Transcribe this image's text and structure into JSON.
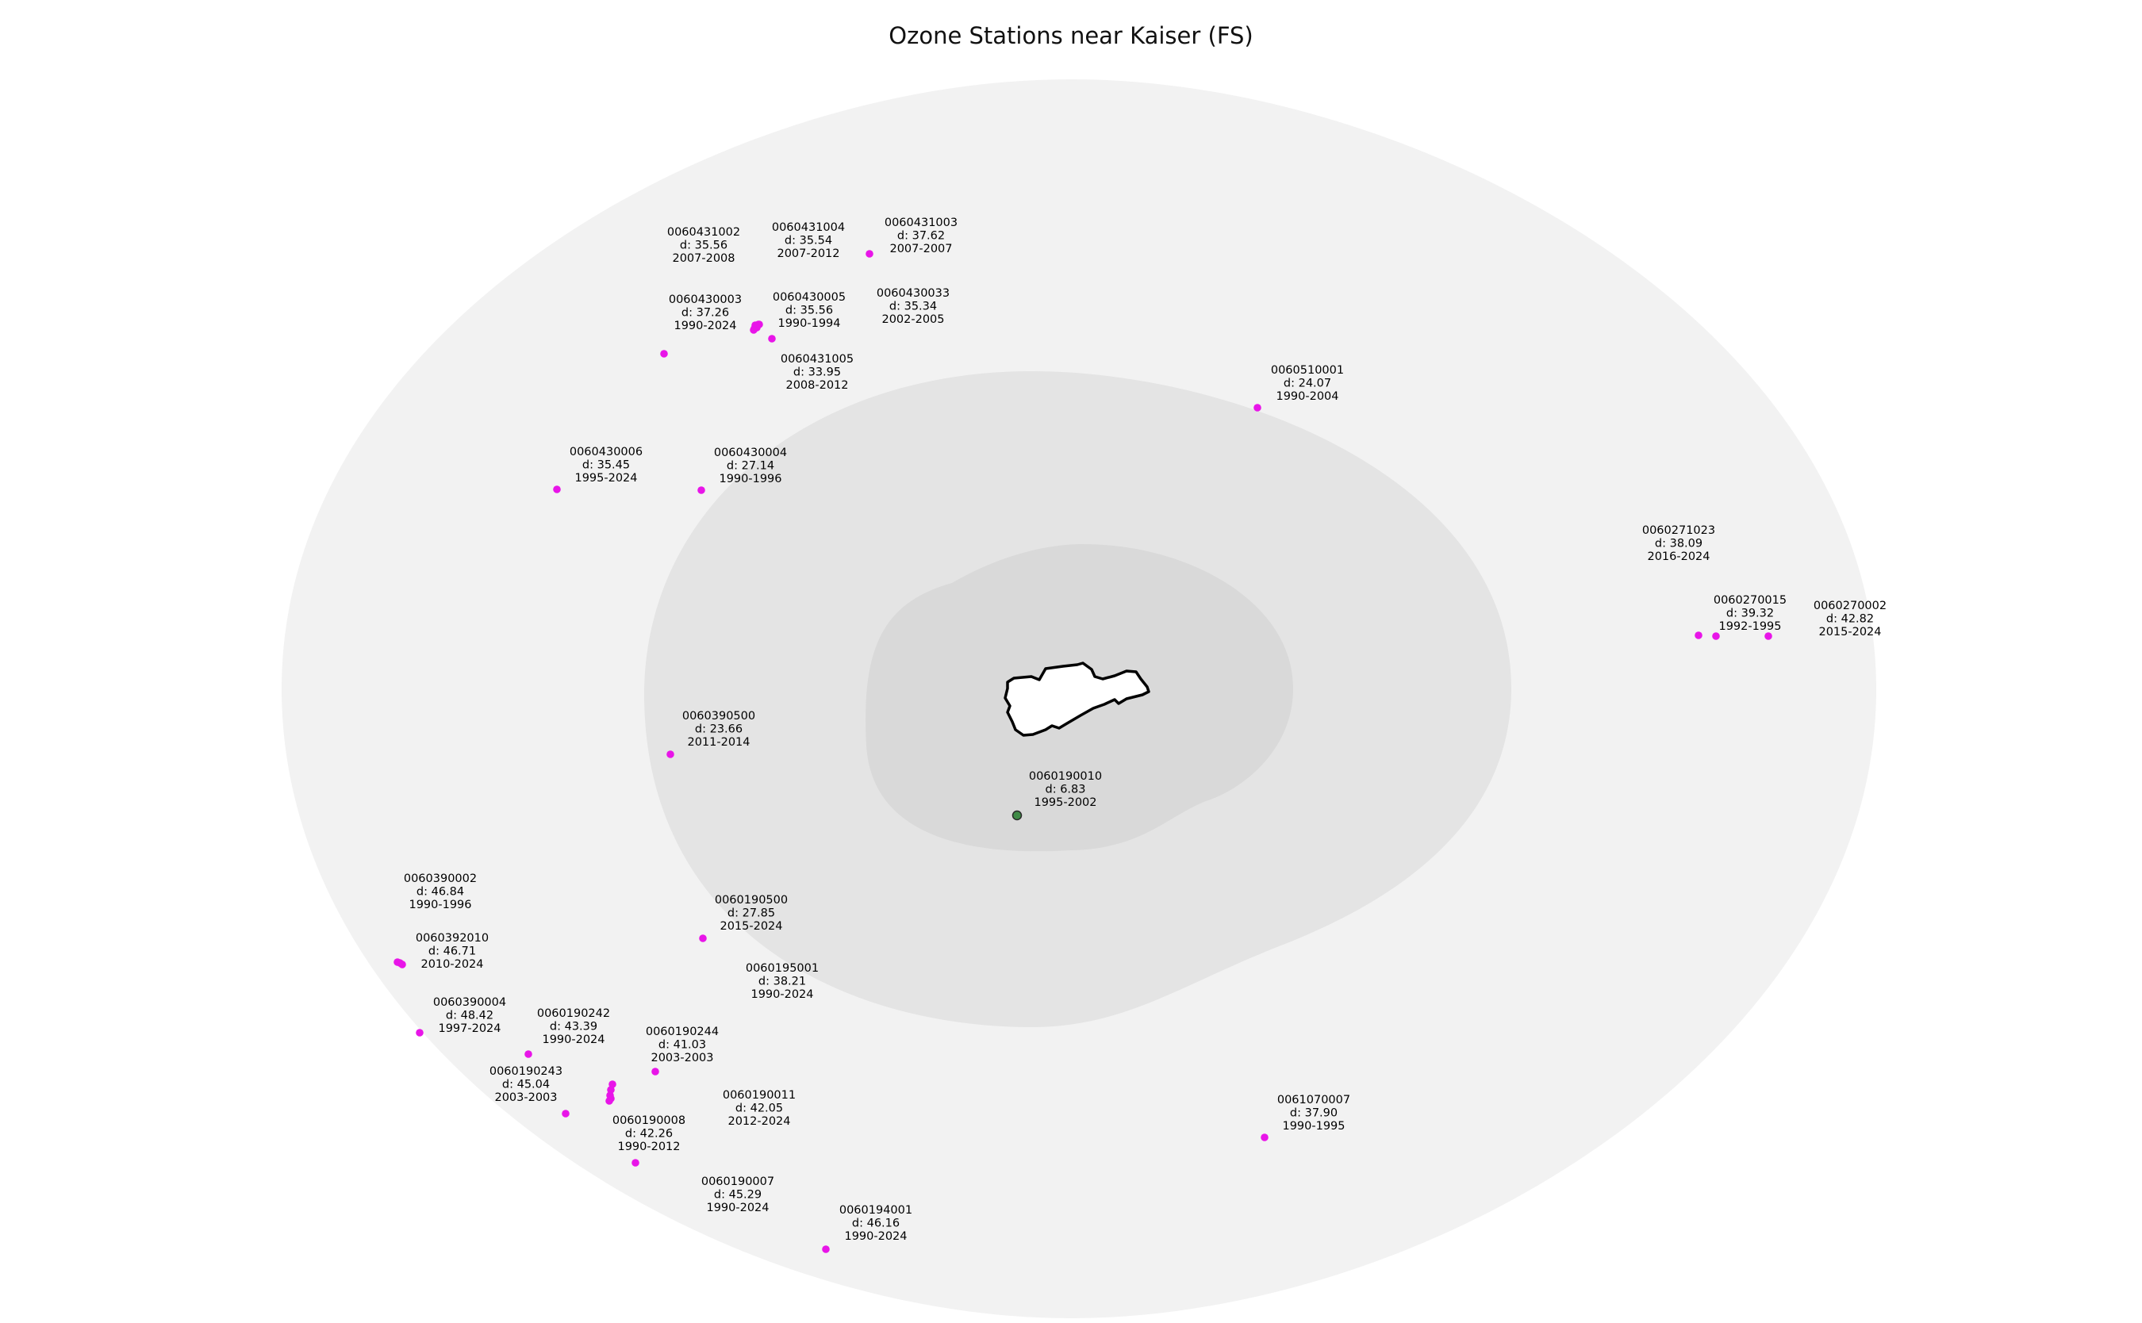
{
  "title": "Ozone Stations near Kaiser (FS)",
  "colors": {
    "ring_outer": "#f2f2f2",
    "ring_middle": "#e4e4e4",
    "ring_inner": "#d9d9d9",
    "station_out": "#e815e8",
    "station_in": "#3f8a46",
    "area_fill": "#ffffff",
    "area_stroke": "#000000"
  },
  "stations": [
    {
      "id": "0060190010",
      "d": "d: 6.83",
      "years": "1995-2002",
      "inside": true
    },
    {
      "id": "0060390500",
      "d": "d: 23.66",
      "years": "2011-2014"
    },
    {
      "id": "0060510001",
      "d": "d: 24.07",
      "years": "1990-2004"
    },
    {
      "id": "0060430004",
      "d": "d: 27.14",
      "years": "1990-1996"
    },
    {
      "id": "0060190500",
      "d": "d: 27.85",
      "years": "2015-2024"
    },
    {
      "id": "0060431005",
      "d": "d: 33.95",
      "years": "2008-2012"
    },
    {
      "id": "0060430033",
      "d": "d: 35.34",
      "years": "2002-2005"
    },
    {
      "id": "0060430006",
      "d": "d: 35.45",
      "years": "1995-2024"
    },
    {
      "id": "0060431004",
      "d": "d: 35.54",
      "years": "2007-2012"
    },
    {
      "id": "0060431002",
      "d": "d: 35.56",
      "years": "2007-2008"
    },
    {
      "id": "0060430005",
      "d": "d: 35.56",
      "years": "1990-1994"
    },
    {
      "id": "0060430003",
      "d": "d: 37.26",
      "years": "1990-2024"
    },
    {
      "id": "0060431003",
      "d": "d: 37.62",
      "years": "2007-2007"
    },
    {
      "id": "0061070007",
      "d": "d: 37.90",
      "years": "1990-1995"
    },
    {
      "id": "0060271023",
      "d": "d: 38.09",
      "years": "2016-2024"
    },
    {
      "id": "0060195001",
      "d": "d: 38.21",
      "years": "1990-2024"
    },
    {
      "id": "0060270015",
      "d": "d: 39.32",
      "years": "1992-1995"
    },
    {
      "id": "0060190244",
      "d": "d: 41.03",
      "years": "2003-2003"
    },
    {
      "id": "0060190011",
      "d": "d: 42.05",
      "years": "2012-2024"
    },
    {
      "id": "0060190008",
      "d": "d: 42.26",
      "years": "1990-2012"
    },
    {
      "id": "0060270002",
      "d": "d: 42.82",
      "years": "2015-2024"
    },
    {
      "id": "0060190242",
      "d": "d: 43.39",
      "years": "1990-2024"
    },
    {
      "id": "0060190243",
      "d": "d: 45.04",
      "years": "2003-2003"
    },
    {
      "id": "0060190007",
      "d": "d: 45.29",
      "years": "1990-2024"
    },
    {
      "id": "0060194001",
      "d": "d: 46.16",
      "years": "1990-2024"
    },
    {
      "id": "0060392010",
      "d": "d: 46.71",
      "years": "2010-2024"
    },
    {
      "id": "0060390002",
      "d": "d: 46.84",
      "years": "1990-1996"
    },
    {
      "id": "0060390004",
      "d": "d: 48.42",
      "years": "1997-2024"
    }
  ]
}
